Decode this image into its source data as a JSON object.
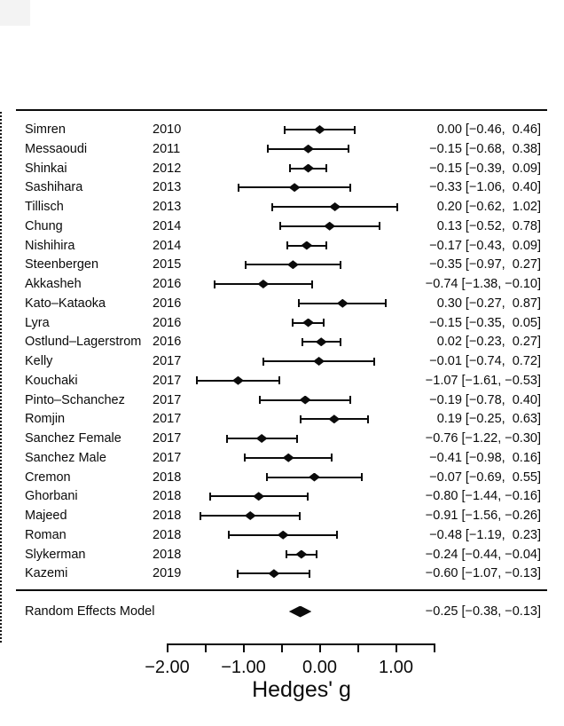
{
  "chart_data": {
    "type": "forest",
    "title": "",
    "xlabel": "Hedges' g",
    "columns": {
      "study": "study name",
      "year": "publication year",
      "estimate": "effect size [95% CI]"
    },
    "axis": {
      "min": -2.0,
      "max": 1.5,
      "tick_step": 0.5,
      "reference_line": 0.0,
      "labeled_ticks": [
        {
          "value": -2.0,
          "label": "−2.00"
        },
        {
          "value": -1.0,
          "label": "−1.00"
        },
        {
          "value": 0.0,
          "label": "0.00"
        },
        {
          "value": 1.0,
          "label": "1.00"
        }
      ]
    },
    "studies": [
      {
        "name": "Simren",
        "year": "2010",
        "g": 0.0,
        "ci_low": -0.46,
        "ci_high": 0.46,
        "label": "0.00 [−0.46,  0.46]"
      },
      {
        "name": "Messaoudi",
        "year": "2011",
        "g": -0.15,
        "ci_low": -0.68,
        "ci_high": 0.38,
        "label": "−0.15 [−0.68,  0.38]"
      },
      {
        "name": "Shinkai",
        "year": "2012",
        "g": -0.15,
        "ci_low": -0.39,
        "ci_high": 0.09,
        "label": "−0.15 [−0.39,  0.09]"
      },
      {
        "name": "Sashihara",
        "year": "2013",
        "g": -0.33,
        "ci_low": -1.06,
        "ci_high": 0.4,
        "label": "−0.33 [−1.06,  0.40]"
      },
      {
        "name": "Tillisch",
        "year": "2013",
        "g": 0.2,
        "ci_low": -0.62,
        "ci_high": 1.02,
        "label": "0.20 [−0.62,  1.02]"
      },
      {
        "name": "Chung",
        "year": "2014",
        "g": 0.13,
        "ci_low": -0.52,
        "ci_high": 0.78,
        "label": "0.13 [−0.52,  0.78]"
      },
      {
        "name": "Nishihira",
        "year": "2014",
        "g": -0.17,
        "ci_low": -0.43,
        "ci_high": 0.09,
        "label": "−0.17 [−0.43,  0.09]"
      },
      {
        "name": "Steenbergen",
        "year": "2015",
        "g": -0.35,
        "ci_low": -0.97,
        "ci_high": 0.27,
        "label": "−0.35 [−0.97,  0.27]"
      },
      {
        "name": "Akkasheh",
        "year": "2016",
        "g": -0.74,
        "ci_low": -1.38,
        "ci_high": -0.1,
        "label": "−0.74 [−1.38, −0.10]"
      },
      {
        "name": "Kato–Kataoka",
        "year": "2016",
        "g": 0.3,
        "ci_low": -0.27,
        "ci_high": 0.87,
        "label": "0.30 [−0.27,  0.87]"
      },
      {
        "name": "Lyra",
        "year": "2016",
        "g": -0.15,
        "ci_low": -0.35,
        "ci_high": 0.05,
        "label": "−0.15 [−0.35,  0.05]"
      },
      {
        "name": "Ostlund–Lagerstrom",
        "year": "2016",
        "g": 0.02,
        "ci_low": -0.23,
        "ci_high": 0.27,
        "label": "0.02 [−0.23,  0.27]"
      },
      {
        "name": "Kelly",
        "year": "2017",
        "g": -0.01,
        "ci_low": -0.74,
        "ci_high": 0.72,
        "label": "−0.01 [−0.74,  0.72]"
      },
      {
        "name": "Kouchaki",
        "year": "2017",
        "g": -1.07,
        "ci_low": -1.61,
        "ci_high": -0.53,
        "label": "−1.07 [−1.61, −0.53]"
      },
      {
        "name": "Pinto–Schanchez",
        "year": "2017",
        "g": -0.19,
        "ci_low": -0.78,
        "ci_high": 0.4,
        "label": "−0.19 [−0.78,  0.40]"
      },
      {
        "name": "Romjin",
        "year": "2017",
        "g": 0.19,
        "ci_low": -0.25,
        "ci_high": 0.63,
        "label": "0.19 [−0.25,  0.63]"
      },
      {
        "name": "Sanchez Female",
        "year": "2017",
        "g": -0.76,
        "ci_low": -1.22,
        "ci_high": -0.3,
        "label": "−0.76 [−1.22, −0.30]"
      },
      {
        "name": "Sanchez Male",
        "year": "2017",
        "g": -0.41,
        "ci_low": -0.98,
        "ci_high": 0.16,
        "label": "−0.41 [−0.98,  0.16]"
      },
      {
        "name": "Cremon",
        "year": "2018",
        "g": -0.07,
        "ci_low": -0.69,
        "ci_high": 0.55,
        "label": "−0.07 [−0.69,  0.55]"
      },
      {
        "name": "Ghorbani",
        "year": "2018",
        "g": -0.8,
        "ci_low": -1.44,
        "ci_high": -0.16,
        "label": "−0.80 [−1.44, −0.16]"
      },
      {
        "name": "Majeed",
        "year": "2018",
        "g": -0.91,
        "ci_low": -1.56,
        "ci_high": -0.26,
        "label": "−0.91 [−1.56, −0.26]"
      },
      {
        "name": "Roman",
        "year": "2018",
        "g": -0.48,
        "ci_low": -1.19,
        "ci_high": 0.23,
        "label": "−0.48 [−1.19,  0.23]"
      },
      {
        "name": "Slykerman",
        "year": "2018",
        "g": -0.24,
        "ci_low": -0.44,
        "ci_high": -0.04,
        "label": "−0.24 [−0.44, −0.04]"
      },
      {
        "name": "Kazemi",
        "year": "2019",
        "g": -0.6,
        "ci_low": -1.07,
        "ci_high": -0.13,
        "label": "−0.60 [−1.07, −0.13]"
      }
    ],
    "summary": {
      "name": "Random Effects Model",
      "g": -0.25,
      "ci_low": -0.38,
      "ci_high": -0.13,
      "label": "−0.25 [−0.38, −0.13]"
    },
    "colors": {
      "ink": "#0b0b0b",
      "background": "#ffffff"
    }
  }
}
